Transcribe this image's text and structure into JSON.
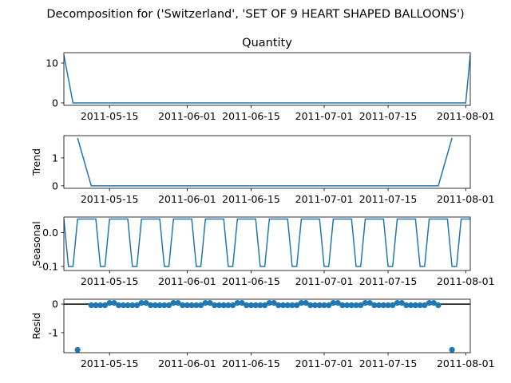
{
  "figure": {
    "suptitle": "Decomposition for ('Switzerland', 'SET OF 9 HEART SHAPED BALLOONS')"
  },
  "chart_data": [
    {
      "type": "line",
      "title": "Quantity",
      "ylabel": "",
      "xlim": [
        "2011-05-05",
        "2011-08-02"
      ],
      "ylim": [
        -0.6,
        12.6
      ],
      "yticks": [
        0,
        10
      ],
      "xticks": [
        "2011-05-15",
        "2011-06-01",
        "2011-06-15",
        "2011-07-01",
        "2011-07-15",
        "2011-08-01"
      ],
      "color": "#1f77b4",
      "x": [
        "2011-05-05",
        "2011-05-07",
        "2011-05-08",
        "2011-07-31",
        "2011-08-01",
        "2011-08-02"
      ],
      "values": [
        12,
        0,
        0,
        0,
        0,
        12
      ]
    },
    {
      "type": "line",
      "title": "",
      "ylabel": "Trend",
      "xlim": [
        "2011-05-05",
        "2011-08-02"
      ],
      "ylim": [
        -0.09,
        1.8
      ],
      "yticks": [
        0,
        1
      ],
      "xticks": [
        "2011-05-15",
        "2011-06-01",
        "2011-06-15",
        "2011-07-01",
        "2011-07-15",
        "2011-08-01"
      ],
      "color": "#1f77b4",
      "x": [
        "2011-05-08",
        "2011-05-11",
        "2011-07-26",
        "2011-07-29"
      ],
      "values": [
        1.714,
        0,
        0,
        1.714
      ]
    },
    {
      "type": "line",
      "title": "",
      "ylabel": "Seasonal",
      "xlim": [
        "2011-05-05",
        "2011-08-02"
      ],
      "ylim": [
        -0.112,
        0.046
      ],
      "yticks": [
        0.0,
        -0.1
      ],
      "xticks": [
        "2011-05-15",
        "2011-06-01",
        "2011-06-15",
        "2011-07-01",
        "2011-07-15",
        "2011-08-01"
      ],
      "color": "#1f77b4",
      "period_days": 7,
      "pattern_start": "2011-05-05",
      "pattern": [
        0.04,
        -0.1,
        -0.1,
        0.04,
        0.04,
        0.04,
        0.04
      ]
    },
    {
      "type": "scatter",
      "title": "",
      "ylabel": "Resid",
      "xlim": [
        "2011-05-05",
        "2011-08-02"
      ],
      "ylim": [
        -1.7,
        0.17
      ],
      "yticks": [
        0,
        -1
      ],
      "xticks": [
        "2011-05-15",
        "2011-06-01",
        "2011-06-15",
        "2011-07-01",
        "2011-07-15",
        "2011-08-01"
      ],
      "color": "#1f77b4",
      "baseline": 0,
      "outliers": [
        {
          "x": "2011-05-08",
          "y": -1.6
        },
        {
          "x": "2011-07-29",
          "y": -1.6
        }
      ],
      "resid_range": [
        "2011-05-11",
        "2011-07-26"
      ],
      "high_value": 0.04,
      "low_value": -0.04,
      "high_days_per_week": 2
    }
  ]
}
